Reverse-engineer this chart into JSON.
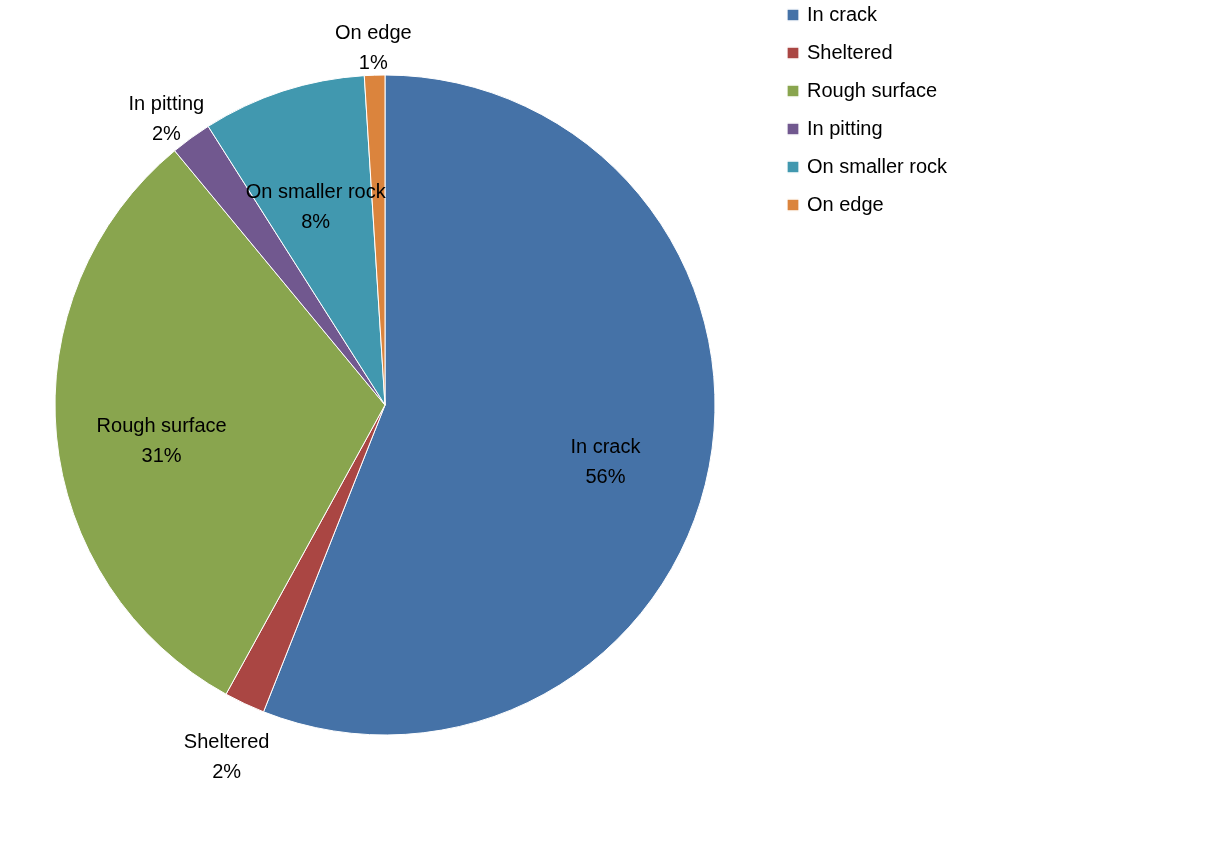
{
  "chart_data": {
    "type": "pie",
    "categories": [
      "In crack",
      "Sheltered",
      "Rough surface",
      "In pitting",
      "On smaller rock",
      "On edge"
    ],
    "values": [
      56,
      2,
      31,
      2,
      8,
      1
    ],
    "value_labels": [
      "56%",
      "2%",
      "31%",
      "2%",
      "8%",
      "1%"
    ],
    "colors": [
      "#4572a7",
      "#aa4643",
      "#89a54e",
      "#71588f",
      "#4198af",
      "#db843d"
    ],
    "legend": "right"
  }
}
